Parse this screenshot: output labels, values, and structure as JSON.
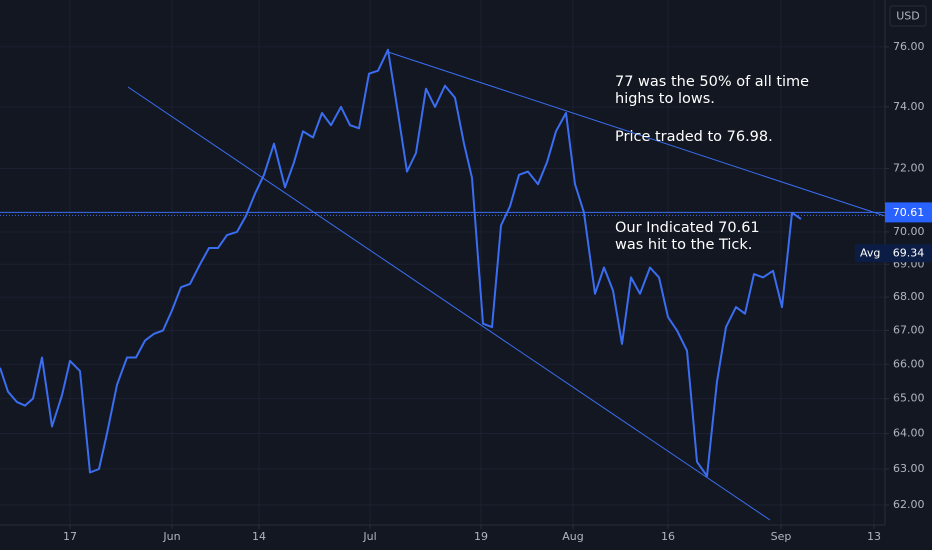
{
  "chart_data": {
    "type": "line",
    "currency": "USD",
    "color": "#3a6df0",
    "log_scale": true,
    "grid": true,
    "x": [
      0,
      0.8,
      1.7,
      2.5,
      3.3,
      4.2,
      5.2,
      6.2,
      7.0,
      8.0,
      9.0,
      9.9,
      10.7,
      11.7,
      12.7,
      13.6,
      14.5,
      15.4,
      16.3,
      17.2,
      18.1,
      19.0,
      20.0,
      20.9,
      21.8,
      22.7,
      23.7,
      24.6,
      25.5,
      26.4,
      27.4,
      28.5,
      29.4,
      30.3,
      31.3,
      32.2,
      33.1,
      34.1,
      35.0,
      35.9,
      36.9,
      37.8,
      38.8,
      39.8,
      40.7,
      41.6,
      42.6,
      43.5,
      44.5,
      45.5,
      46.4,
      47.2,
      48.3,
      49.2,
      50.1,
      51.0,
      51.9,
      52.8,
      53.8,
      54.7,
      55.6,
      56.6,
      57.5,
      58.4,
      59.5,
      60.4,
      61.3,
      62.2,
      63.1,
      64.0,
      65.0,
      65.9,
      66.8,
      67.7,
      68.7,
      69.7,
      70.7,
      71.7,
      72.6,
      73.6,
      74.5,
      75.4,
      76.3,
      77.3,
      78.2,
      79.2,
      80.1
    ],
    "values": [
      65.9,
      65.2,
      64.9,
      64.8,
      65.0,
      66.2,
      64.2,
      65.1,
      66.1,
      65.8,
      62.9,
      63.0,
      64.0,
      65.4,
      66.2,
      66.2,
      66.7,
      66.9,
      67.0,
      67.6,
      68.3,
      68.4,
      69.0,
      69.5,
      69.5,
      69.9,
      70.0,
      70.5,
      71.2,
      71.8,
      72.8,
      71.4,
      72.2,
      73.2,
      73.0,
      73.8,
      73.4,
      74.0,
      73.4,
      73.3,
      75.1,
      75.2,
      75.9,
      73.8,
      71.9,
      72.5,
      74.6,
      74.0,
      74.7,
      74.3,
      72.8,
      71.7,
      67.2,
      67.1,
      70.2,
      70.8,
      71.8,
      71.9,
      71.5,
      72.2,
      73.2,
      73.8,
      71.5,
      70.6,
      68.1,
      68.9,
      68.2,
      66.6,
      68.6,
      68.1,
      68.9,
      68.6,
      67.4,
      67.0,
      66.4,
      63.2,
      62.8,
      65.5,
      67.1,
      67.7,
      67.5,
      68.7,
      68.6,
      68.8,
      67.7,
      70.6,
      70.4
    ],
    "xlim": [
      0,
      88.5
    ],
    "xticks": [
      {
        "value": 7.0,
        "label": "17"
      },
      {
        "value": 17.2,
        "label": "Jun"
      },
      {
        "value": 25.9,
        "label": "14"
      },
      {
        "value": 37.0,
        "label": "Jul"
      },
      {
        "value": 48.1,
        "label": "19"
      },
      {
        "value": 57.3,
        "label": "Aug"
      },
      {
        "value": 66.8,
        "label": "16"
      },
      {
        "value": 78.1,
        "label": "Sep"
      },
      {
        "value": 87.4,
        "label": "13"
      }
    ],
    "ylim": [
      61.45,
      77.6
    ],
    "yticks": [
      {
        "value": 62,
        "label": "62.00"
      },
      {
        "value": 63,
        "label": "63.00"
      },
      {
        "value": 64,
        "label": "64.00"
      },
      {
        "value": 65,
        "label": "65.00"
      },
      {
        "value": 66,
        "label": "66.00"
      },
      {
        "value": 67,
        "label": "67.00"
      },
      {
        "value": 68,
        "label": "68.00"
      },
      {
        "value": 69,
        "label": "69.00"
      },
      {
        "value": 70,
        "label": "70.00"
      },
      {
        "value": 72,
        "label": "72.00"
      },
      {
        "value": 74,
        "label": "74.00"
      },
      {
        "value": 76,
        "label": "76.00"
      }
    ],
    "price_line": 70.61,
    "avg": {
      "label": "Avg",
      "value": 69.34
    },
    "annotations": [
      [
        "77 was the 50% of all time",
        "highs to lows."
      ],
      [
        "Price traded to 76.98."
      ],
      [
        "Our Indicated 70.61",
        "was hit to the Tick."
      ]
    ]
  }
}
